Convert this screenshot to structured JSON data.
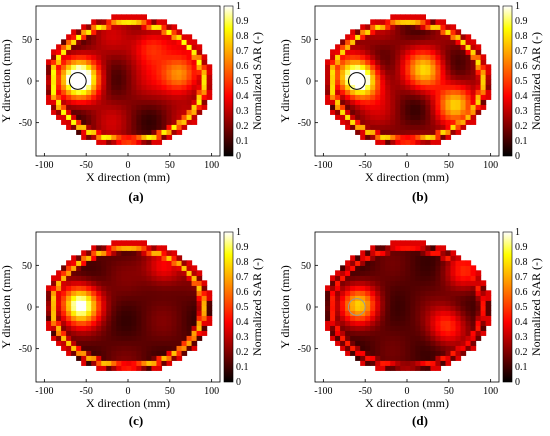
{
  "chart_data": [
    {
      "type": "heatmap",
      "panel_label": "(a)",
      "xlabel": "X direction (mm)",
      "ylabel": "Y direction (mm)",
      "colorbar_label": "Normalized SAR (-)",
      "xticks": [
        "-100",
        "-50",
        "0",
        "50",
        "100"
      ],
      "yticks": [
        "50",
        "0",
        "-50"
      ],
      "colorbar_ticks": [
        "1",
        "0.9",
        "0.8",
        "0.7",
        "0.6",
        "0.5",
        "0.4",
        "0.3",
        "0.2",
        "0.1",
        "0"
      ],
      "xlim": [
        -110,
        110
      ],
      "ylim": [
        -90,
        90
      ],
      "colorbar_range": [
        0,
        1
      ],
      "target_marker": {
        "x": -60,
        "y": 0,
        "r": 10
      },
      "hotspots": [
        {
          "x": -60,
          "y": 0,
          "value": 1.0
        },
        {
          "x": 60,
          "y": 5,
          "value": 0.55
        },
        {
          "x": 25,
          "y": 40,
          "value": 0.35
        }
      ],
      "shell_level": 0.85
    },
    {
      "type": "heatmap",
      "panel_label": "(b)",
      "xlabel": "X direction (mm)",
      "ylabel": "Y direction (mm)",
      "colorbar_label": "Normalized SAR (-)",
      "xticks": [
        "-100",
        "-50",
        "0",
        "50",
        "100"
      ],
      "yticks": [
        "50",
        "0",
        "-50"
      ],
      "colorbar_ticks": [
        "1",
        "0.9",
        "0.8",
        "0.7",
        "0.6",
        "0.5",
        "0.4",
        "0.3",
        "0.2",
        "0.1",
        "0"
      ],
      "xlim": [
        -110,
        110
      ],
      "ylim": [
        -90,
        90
      ],
      "colorbar_range": [
        0,
        1
      ],
      "target_marker": {
        "x": -60,
        "y": 0,
        "r": 10
      },
      "hotspots": [
        {
          "x": -60,
          "y": 0,
          "value": 1.0
        },
        {
          "x": 20,
          "y": 10,
          "value": 0.5
        },
        {
          "x": 55,
          "y": -30,
          "value": 0.45
        }
      ],
      "shell_level": 0.8
    },
    {
      "type": "heatmap",
      "panel_label": "(c)",
      "xlabel": "X direction (mm)",
      "ylabel": "Y direction (mm)",
      "colorbar_label": "Normalized SAR (-)",
      "xticks": [
        "-100",
        "-50",
        "0",
        "50",
        "100"
      ],
      "yticks": [
        "50",
        "0",
        "-50"
      ],
      "colorbar_ticks": [
        "1",
        "0.9",
        "0.8",
        "0.7",
        "0.6",
        "0.5",
        "0.4",
        "0.3",
        "0.2",
        "0.1",
        "0"
      ],
      "xlim": [
        -110,
        110
      ],
      "ylim": [
        -90,
        90
      ],
      "colorbar_range": [
        0,
        1
      ],
      "target_marker": null,
      "hotspots": [
        {
          "x": -60,
          "y": 0,
          "value": 0.9
        },
        {
          "x": 40,
          "y": 45,
          "value": 0.3
        }
      ],
      "shell_level": 0.75
    },
    {
      "type": "heatmap",
      "panel_label": "(d)",
      "xlabel": "X direction (mm)",
      "ylabel": "Y direction (mm)",
      "colorbar_label": "Normalized SAR (-)",
      "xticks": [
        "-100",
        "-50",
        "0",
        "50",
        "100"
      ],
      "yticks": [
        "50",
        "0",
        "-50"
      ],
      "colorbar_ticks": [
        "1",
        "0.9",
        "0.8",
        "0.7",
        "0.6",
        "0.5",
        "0.4",
        "0.3",
        "0.2",
        "0.1",
        "0"
      ],
      "xlim": [
        -110,
        110
      ],
      "ylim": [
        -90,
        90
      ],
      "colorbar_range": [
        0,
        1
      ],
      "target_marker": {
        "x": -60,
        "y": 0,
        "r": 10
      },
      "hotspots": [
        {
          "x": -60,
          "y": 0,
          "value": 0.6
        },
        {
          "x": 45,
          "y": -25,
          "value": 0.35
        },
        {
          "x": 65,
          "y": 40,
          "value": 0.3
        }
      ],
      "shell_level": 0.45
    }
  ]
}
